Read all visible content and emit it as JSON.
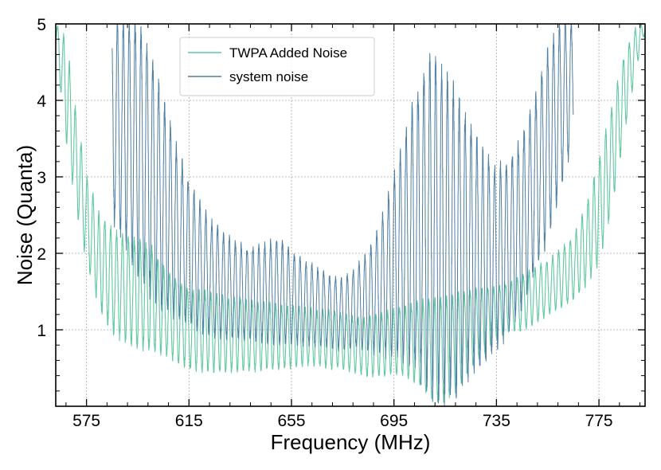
{
  "chart_data": {
    "type": "line",
    "title": "",
    "xlabel": "Frequency (MHz)",
    "ylabel": "Noise (Quanta)",
    "xlim": [
      563,
      793
    ],
    "ylim": [
      0,
      5
    ],
    "xticks": [
      575,
      615,
      655,
      695,
      735,
      775
    ],
    "yticks": [
      1,
      2,
      3,
      4,
      5
    ],
    "grid": true,
    "legend_position": "top-left",
    "oscillation_period_mhz": 2.3,
    "series": [
      {
        "name": "TWPA Added Noise",
        "color": "#5fc9a0",
        "envelope_x": [
          563,
          567,
          571,
          575,
          580,
          585,
          590,
          595,
          600,
          605,
          610,
          615,
          620,
          625,
          630,
          635,
          640,
          645,
          650,
          655,
          660,
          665,
          670,
          675,
          680,
          685,
          690,
          695,
          700,
          705,
          710,
          715,
          720,
          725,
          730,
          735,
          740,
          745,
          750,
          755,
          760,
          765,
          770,
          775,
          780,
          785,
          790,
          793
        ],
        "lower": [
          4.7,
          3.5,
          2.6,
          1.9,
          1.3,
          1.0,
          0.85,
          0.8,
          0.75,
          0.7,
          0.6,
          0.5,
          0.48,
          0.47,
          0.47,
          0.48,
          0.48,
          0.5,
          0.5,
          0.52,
          0.55,
          0.55,
          0.5,
          0.5,
          0.45,
          0.4,
          0.4,
          0.45,
          0.4,
          0.3,
          0.1,
          0.1,
          0.25,
          0.5,
          0.7,
          0.9,
          1.0,
          1.0,
          1.1,
          1.2,
          1.3,
          1.4,
          1.6,
          1.9,
          2.6,
          3.6,
          4.5,
          4.9
        ],
        "upper": [
          5.0,
          4.8,
          3.8,
          3.0,
          2.5,
          2.3,
          2.2,
          2.15,
          2.1,
          1.8,
          1.65,
          1.5,
          1.5,
          1.45,
          1.4,
          1.4,
          1.35,
          1.35,
          1.3,
          1.3,
          1.28,
          1.25,
          1.25,
          1.2,
          1.15,
          1.15,
          1.2,
          1.25,
          1.3,
          1.35,
          1.4,
          1.4,
          1.45,
          1.5,
          1.55,
          1.55,
          1.6,
          1.7,
          1.8,
          1.9,
          2.05,
          2.2,
          2.6,
          3.2,
          3.9,
          4.6,
          5.0,
          5.0
        ]
      },
      {
        "name": "system noise",
        "color": "#4f7fa3",
        "envelope_x": [
          563,
          585,
          590,
          595,
          600,
          605,
          610,
          615,
          620,
          625,
          630,
          635,
          640,
          645,
          650,
          655,
          660,
          665,
          670,
          675,
          680,
          685,
          690,
          695,
          700,
          705,
          710,
          715,
          720,
          725,
          730,
          735,
          740,
          745,
          750,
          755,
          760,
          765,
          770,
          793
        ],
        "lower": [
          null,
          2.5,
          2.2,
          1.8,
          1.5,
          1.3,
          1.2,
          1.1,
          1.0,
          0.95,
          0.9,
          0.9,
          0.88,
          0.85,
          0.85,
          0.85,
          0.82,
          0.8,
          0.78,
          0.75,
          0.8,
          0.75,
          0.7,
          0.7,
          0.6,
          0.45,
          0.25,
          0.1,
          0.25,
          0.5,
          0.6,
          0.8,
          1.0,
          1.3,
          1.8,
          2.2,
          2.9,
          3.5,
          null,
          null
        ],
        "upper": [
          null,
          5.0,
          5.0,
          5.0,
          4.6,
          4.0,
          3.4,
          2.9,
          2.6,
          2.35,
          2.2,
          2.1,
          2.05,
          2.1,
          2.2,
          2.0,
          1.9,
          1.8,
          1.7,
          1.65,
          1.8,
          2.0,
          2.4,
          3.0,
          3.6,
          4.2,
          4.6,
          4.3,
          4.0,
          3.6,
          3.3,
          3.1,
          3.2,
          3.5,
          4.0,
          4.6,
          5.0,
          5.0,
          null,
          null
        ]
      }
    ]
  }
}
